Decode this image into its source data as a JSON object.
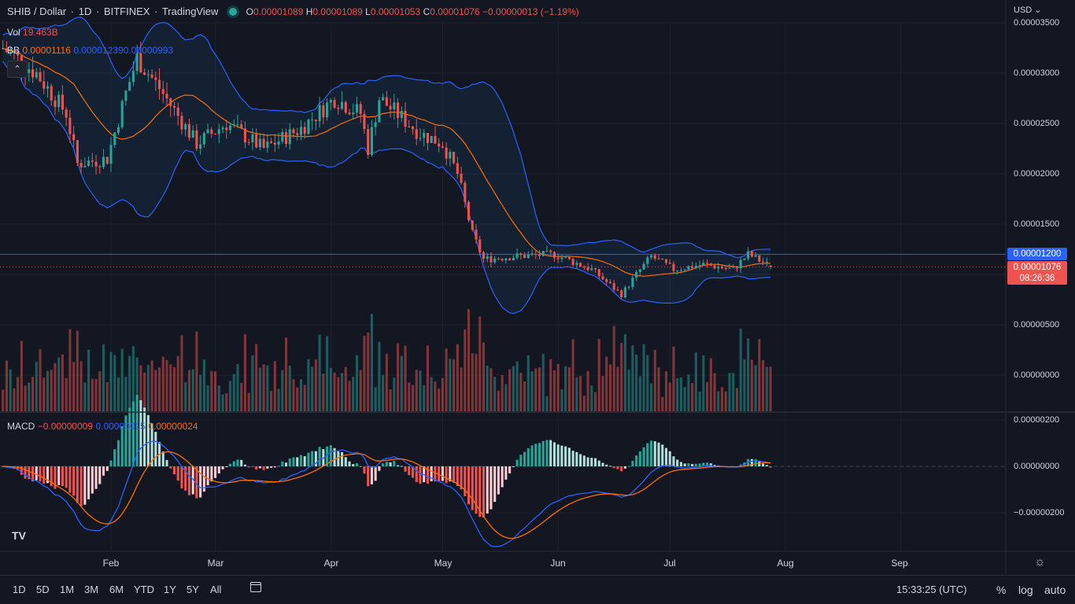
{
  "header": {
    "symbol": "SHIB / Dollar",
    "interval": "1D",
    "exchange": "BITFINEX",
    "source": "TradingView",
    "o_label": "O",
    "o_value": "0.00001089",
    "h_label": "H",
    "h_value": "0.00001089",
    "l_label": "L",
    "l_value": "0.00001053",
    "c_label": "C",
    "c_value": "0.00001076",
    "change": "−0.00000013 (−1.19%)"
  },
  "indicators": {
    "vol_label": "Vol",
    "vol_value": "19.463B",
    "bb_label": "BB",
    "bb_basis": "0.00001116",
    "bb_upper": "0.00001239",
    "bb_lower": "0.00000993",
    "macd_label": "MACD",
    "macd_hist": "−0.00000009",
    "macd_line": "0.00000015",
    "macd_signal": "0.00000024"
  },
  "currency_menu": "USD",
  "price_axis": {
    "labels": [
      "0.00003500",
      "0.00003000",
      "0.00002500",
      "0.00002000",
      "0.00001500",
      "0.00000500",
      "0.00000000"
    ],
    "macd_labels": [
      "0.00000200",
      "0.00000000",
      "−0.00000200"
    ],
    "horizontal_line_tag": "0.00001200",
    "last_price_tag": "0.00001076",
    "countdown": "08:26:36"
  },
  "time_axis": [
    "Feb",
    "Mar",
    "Apr",
    "May",
    "Jun",
    "Jul",
    "Aug",
    "Sep"
  ],
  "bottom_toolbar": {
    "ranges": [
      "1D",
      "5D",
      "1M",
      "3M",
      "6M",
      "YTD",
      "1Y",
      "5Y",
      "All"
    ],
    "clock": "15:33:25 (UTC)",
    "percent": "%",
    "log": "log",
    "auto": "auto"
  },
  "logo": "TV",
  "colors": {
    "up": "#26a69a",
    "down": "#ef5350",
    "bb_band": "#2962ff",
    "bb_basis": "#ff6d00",
    "bg": "#131722",
    "hline": "#2962ff"
  },
  "chart_data": {
    "type": "candlestick",
    "x_range": [
      "2022-01-03",
      "2022-09-30"
    ],
    "y_range": [
      0.0,
      3.55e-05
    ],
    "price_key_points": [
      {
        "date": "2022-01-03",
        "close": 3.25e-05
      },
      {
        "date": "2022-01-12",
        "close": 3e-05
      },
      {
        "date": "2022-01-20",
        "close": 2.6e-05
      },
      {
        "date": "2022-01-23",
        "close": 2.1e-05
      },
      {
        "date": "2022-01-31",
        "close": 2.15e-05
      },
      {
        "date": "2022-02-05",
        "close": 2.8e-05
      },
      {
        "date": "2022-02-08",
        "close": 3.15e-05
      },
      {
        "date": "2022-02-14",
        "close": 2.85e-05
      },
      {
        "date": "2022-02-24",
        "close": 2.3e-05
      },
      {
        "date": "2022-03-04",
        "close": 2.5e-05
      },
      {
        "date": "2022-03-14",
        "close": 2.25e-05
      },
      {
        "date": "2022-03-24",
        "close": 2.45e-05
      },
      {
        "date": "2022-04-02",
        "close": 2.75e-05
      },
      {
        "date": "2022-04-09",
        "close": 2.6e-05
      },
      {
        "date": "2022-04-11",
        "close": 2.25e-05
      },
      {
        "date": "2022-04-14",
        "close": 2.75e-05
      },
      {
        "date": "2022-04-25",
        "close": 2.4e-05
      },
      {
        "date": "2022-05-01",
        "close": 2.3e-05
      },
      {
        "date": "2022-05-05",
        "close": 2e-05
      },
      {
        "date": "2022-05-09",
        "close": 1.4e-05
      },
      {
        "date": "2022-05-12",
        "close": 1.15e-05
      },
      {
        "date": "2022-05-20",
        "close": 1.18e-05
      },
      {
        "date": "2022-05-31",
        "close": 1.2e-05
      },
      {
        "date": "2022-06-10",
        "close": 1.05e-05
      },
      {
        "date": "2022-06-18",
        "close": 8e-06
      },
      {
        "date": "2022-06-22",
        "close": 1e-05
      },
      {
        "date": "2022-06-26",
        "close": 1.18e-05
      },
      {
        "date": "2022-07-02",
        "close": 1.05e-05
      },
      {
        "date": "2022-07-10",
        "close": 1.1e-05
      },
      {
        "date": "2022-07-18",
        "close": 1.05e-05
      },
      {
        "date": "2022-07-22",
        "close": 1.2e-05
      },
      {
        "date": "2022-07-28",
        "close": 1.08e-05
      }
    ],
    "horizontal_line": 1.2e-05,
    "last_price": 1.076e-05,
    "vol_range": [
      0,
      50
    ],
    "macd_range": [
      -3.5e-06,
      2.5e-06
    ],
    "series": [
      {
        "name": "BB"
      },
      {
        "name": "Vol"
      },
      {
        "name": "MACD"
      }
    ]
  }
}
